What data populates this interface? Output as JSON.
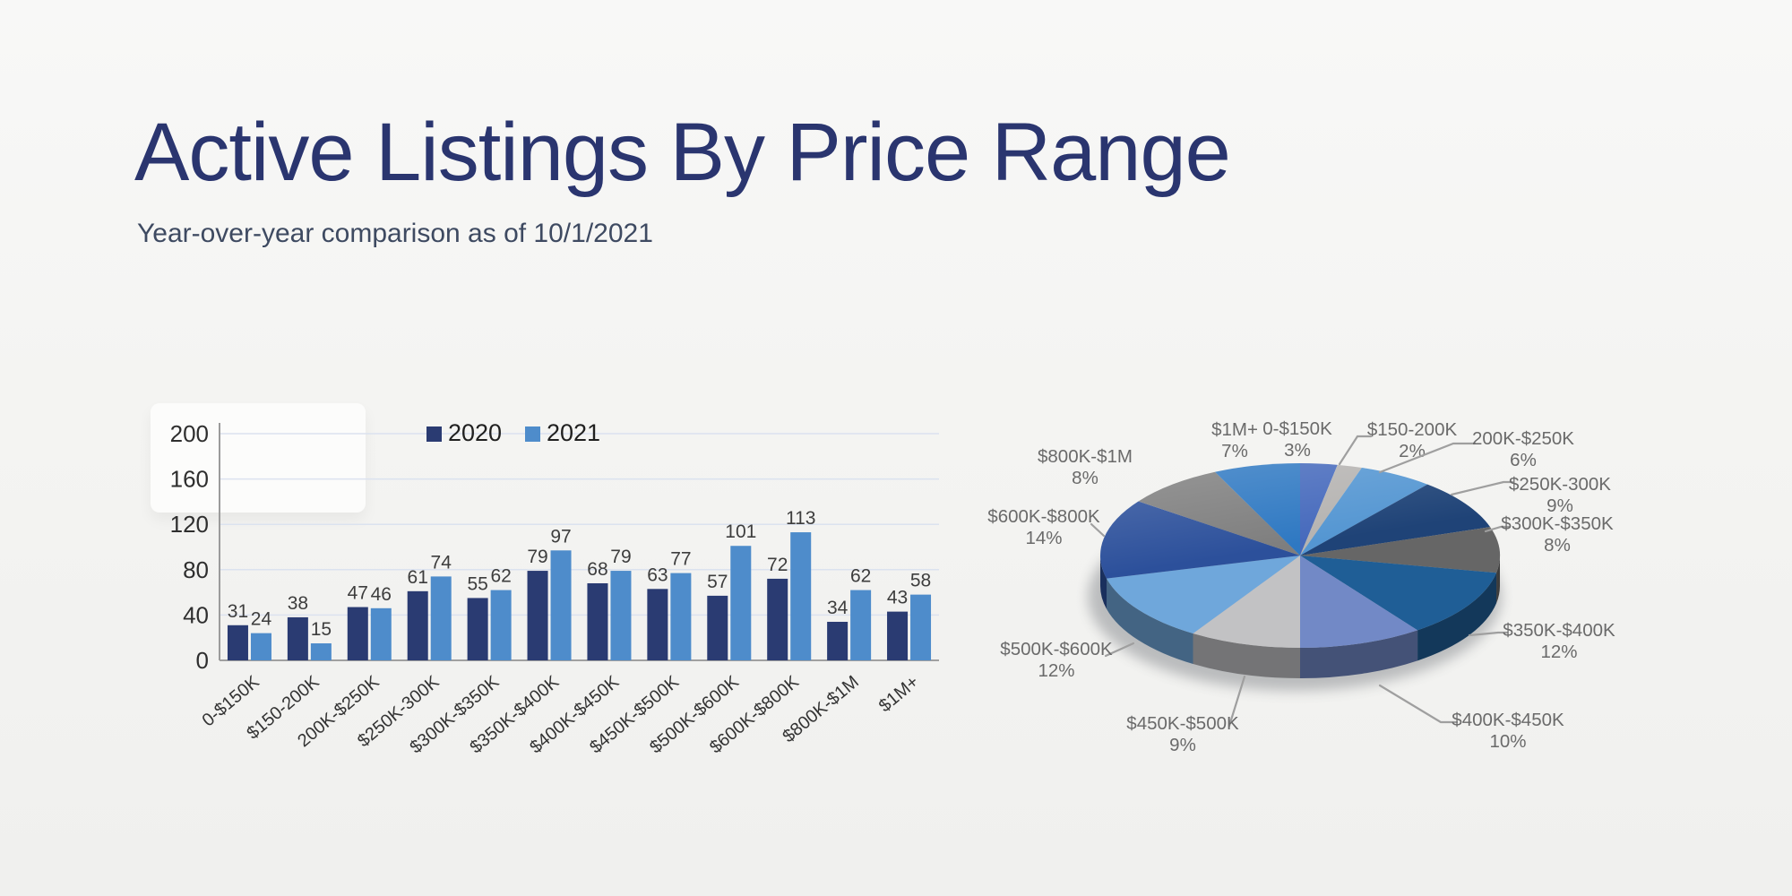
{
  "page": {
    "title": "Active Listings By Price Range",
    "subtitle": "Year-over-year comparison as of 10/1/2021"
  },
  "colors": {
    "background": "#F4F4F2",
    "title": "#2A356F",
    "subtitle": "#3E4A61",
    "series_2020": "#2A3B72",
    "series_2021": "#4E8CCB",
    "gridline": "#DBE2EF",
    "axis": "#A0A0A0",
    "y_axis_line": "#9B9B9B",
    "tick_label": "#2E2E2E",
    "bar_value_label": "#3D3D3D",
    "x_category_label": "#333333",
    "legend_text": "#202020",
    "pie_label": "#6A6A6A",
    "leader_line": "#9F9F9F"
  },
  "chart_data": [
    {
      "type": "bar",
      "title": "",
      "grid": true,
      "legend_position": "top-center",
      "categories": [
        "0-$150K",
        "$150-200K",
        "200K-$250K",
        "$250K-300K",
        "$300K-$350K",
        "$350K-$400K",
        "$400K-$450K",
        "$450K-$500K",
        "$500K-$600K",
        "$600K-$800K",
        "$800K-$1M",
        "$1M+"
      ],
      "series": [
        {
          "name": "2020",
          "color": "#2A3B72",
          "values": [
            31,
            38,
            47,
            61,
            55,
            79,
            68,
            63,
            57,
            72,
            34,
            43
          ]
        },
        {
          "name": "2021",
          "color": "#4E8CCB",
          "values": [
            24,
            15,
            46,
            74,
            62,
            97,
            79,
            77,
            101,
            113,
            62,
            58
          ]
        }
      ],
      "ylim": [
        0,
        200
      ],
      "yticks": [
        0,
        40,
        80,
        120,
        160,
        200
      ]
    },
    {
      "type": "pie",
      "style": "3d",
      "unit": "%",
      "categories": [
        "0-$150K",
        "$150-200K",
        "200K-$250K",
        "$250K-300K",
        "$300K-$350K",
        "$350K-$400K",
        "$400K-$450K",
        "$450K-$500K",
        "$500K-$600K",
        "$600K-$800K",
        "$800K-$1M",
        "$1M+"
      ],
      "values": [
        3,
        2,
        6,
        9,
        8,
        12,
        10,
        9,
        12,
        14,
        8,
        7
      ],
      "slice_colors": [
        "#4569BC",
        "#B5B3B1",
        "#5496D2",
        "#1F4377",
        "#666666",
        "#1F5E96",
        "#7289C6",
        "#C2C2C4",
        "#6FA7DB",
        "#2C509B",
        "#7E7E7E",
        "#2E78C2"
      ]
    }
  ]
}
